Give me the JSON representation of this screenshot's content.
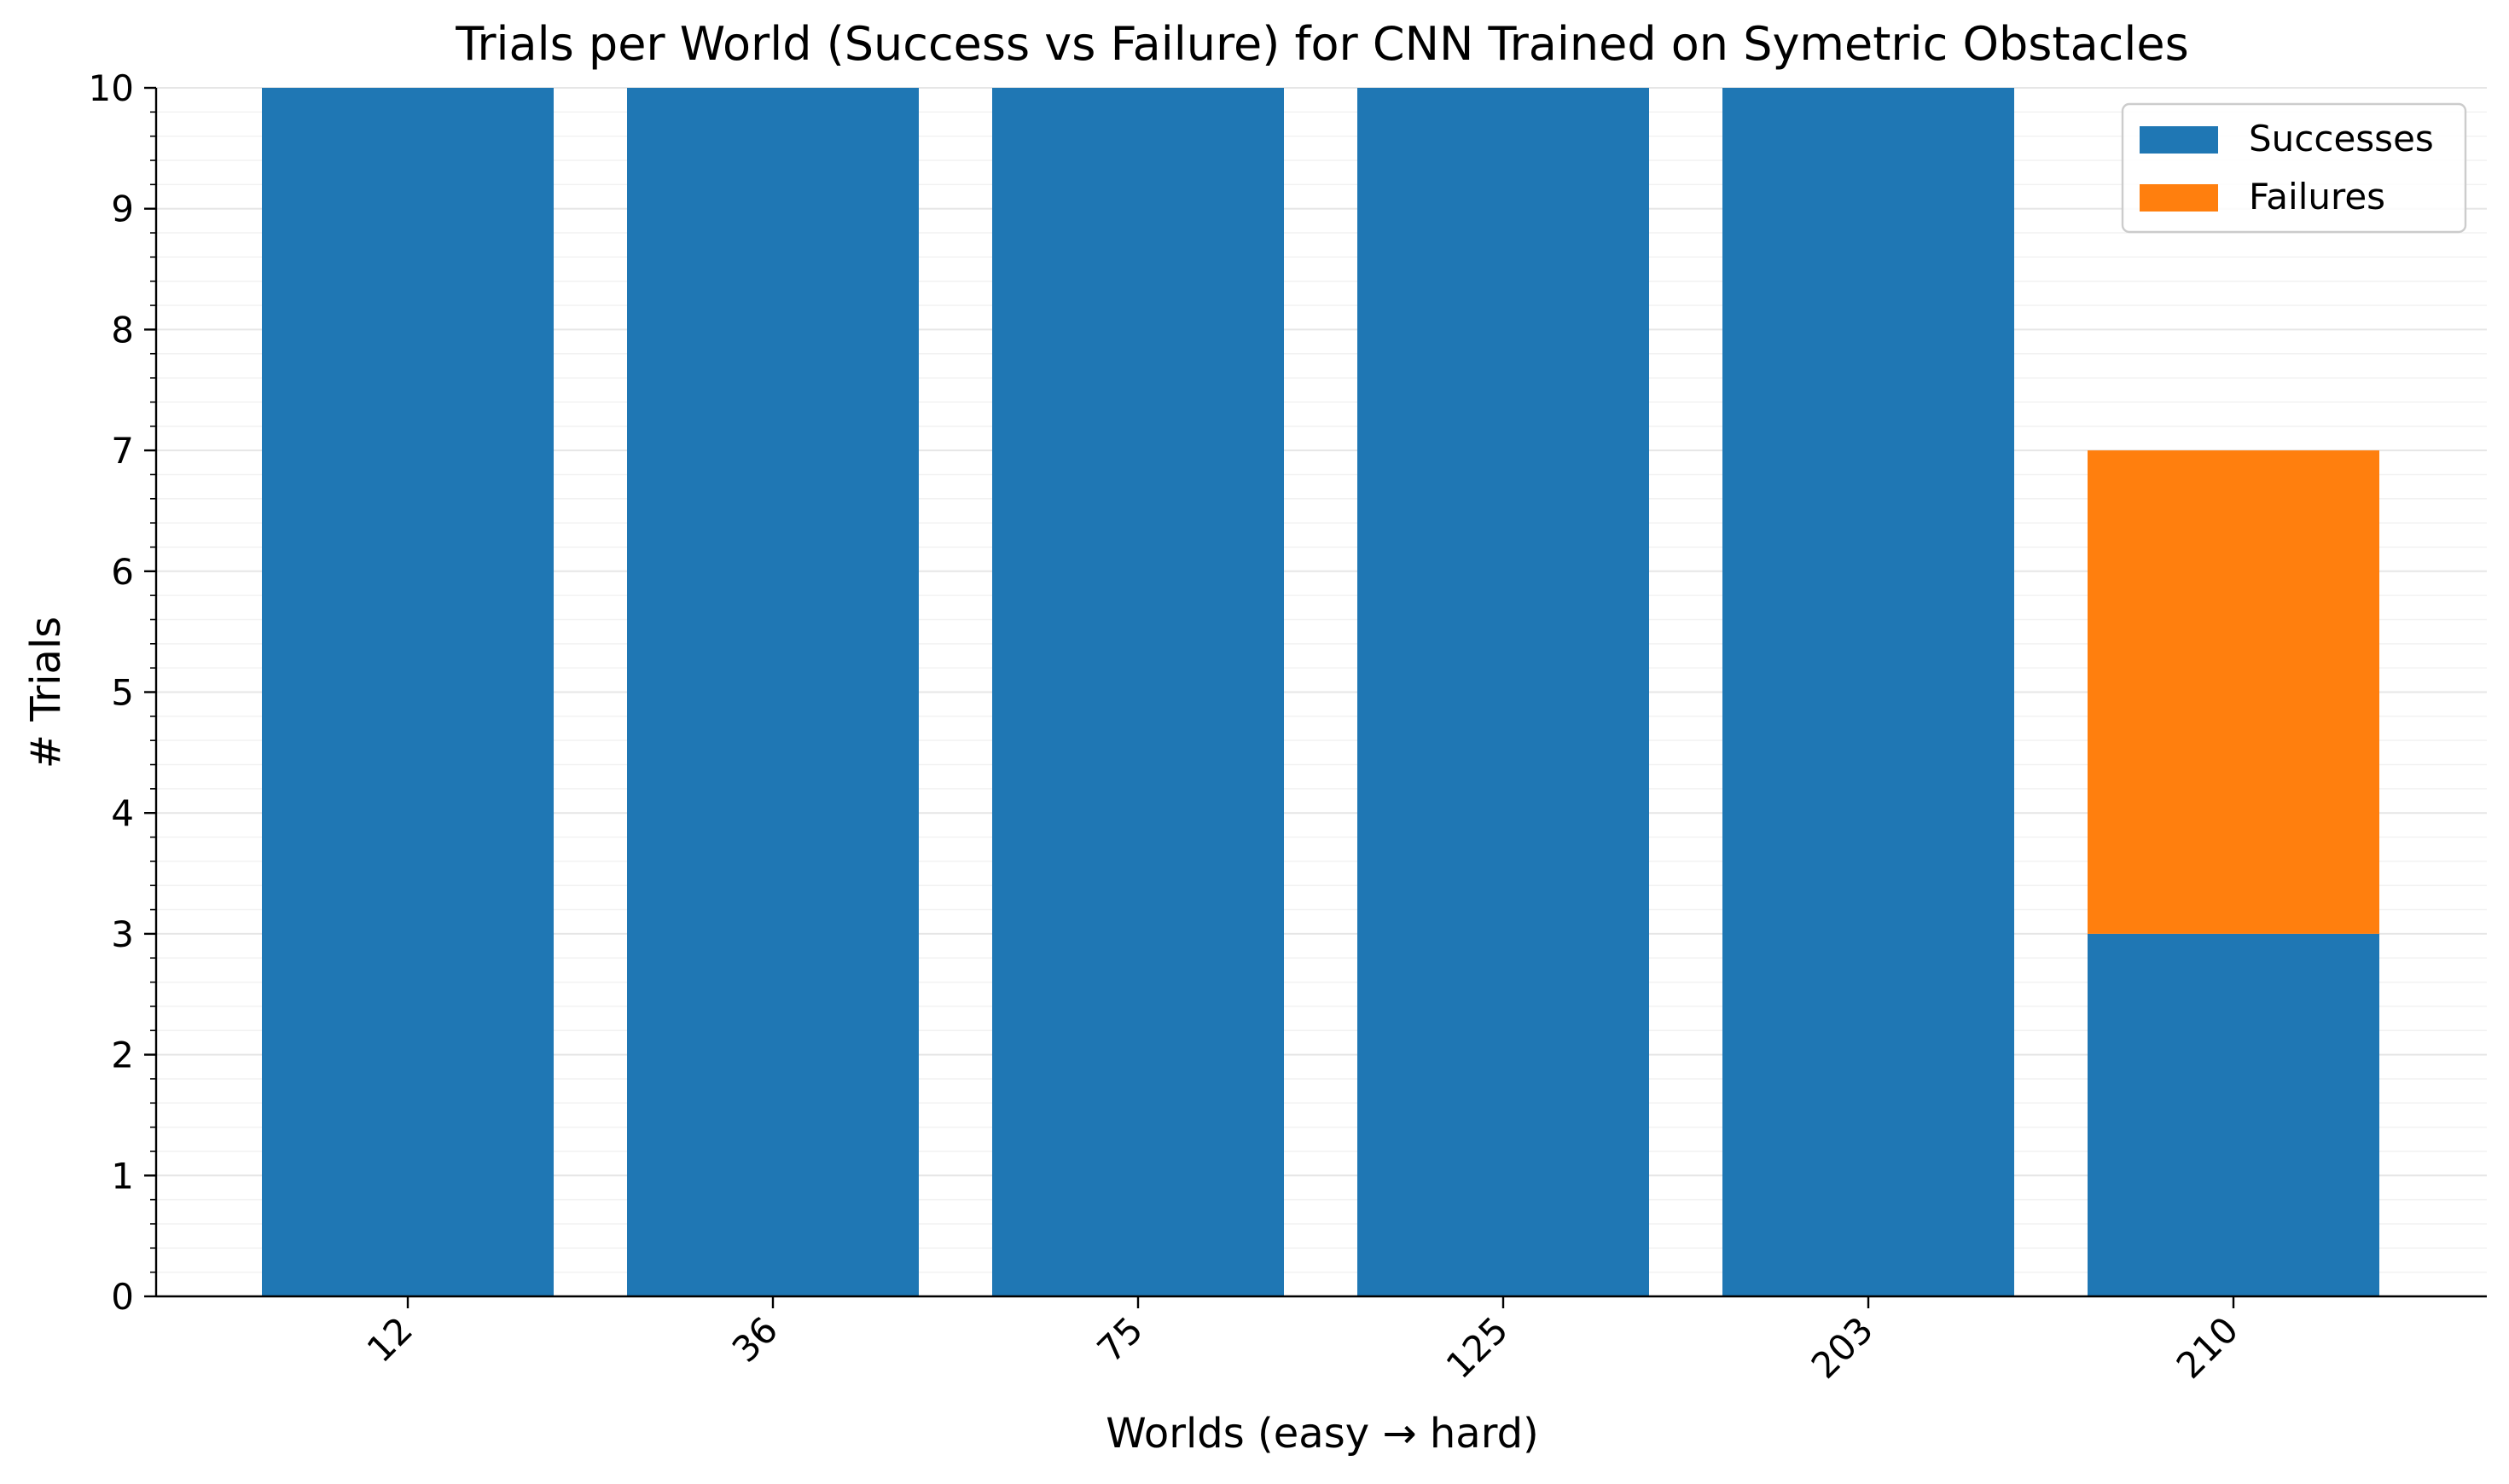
{
  "chart_data": {
    "type": "bar",
    "stacked": true,
    "title": "Trials per World (Success vs Failure) for CNN Trained on Symetric Obstacles",
    "xlabel": "Worlds (easy → hard)",
    "ylabel": "# Trials",
    "categories": [
      "12",
      "36",
      "75",
      "125",
      "203",
      "210"
    ],
    "series": [
      {
        "name": "Successes",
        "color": "#1f77b4",
        "values": [
          10,
          10,
          10,
          10,
          10,
          3
        ]
      },
      {
        "name": "Failures",
        "color": "#ff7f0e",
        "values": [
          0,
          0,
          0,
          0,
          0,
          4
        ]
      }
    ],
    "ylim": [
      0,
      10
    ],
    "yticks": [
      0,
      1,
      2,
      3,
      4,
      5,
      6,
      7,
      8,
      9,
      10
    ],
    "x_tick_rotation_deg": 45,
    "grid": {
      "major_y": true,
      "minor_y": true,
      "color": "#e6e6e6"
    },
    "legend": {
      "position": "top-right",
      "entries": [
        "Successes",
        "Failures"
      ]
    },
    "spines": {
      "top": false,
      "right": false
    }
  }
}
